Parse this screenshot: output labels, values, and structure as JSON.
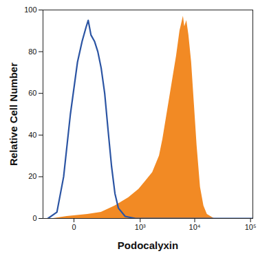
{
  "chart_data": {
    "type": "line",
    "x_label": "Podocalyxin",
    "y_label": "Relative Cell Number",
    "log": "x",
    "grid": false,
    "xlim": [
      -180,
      110000
    ],
    "ylim": [
      0,
      100
    ],
    "xticks": [
      0,
      {
        "value": 1000,
        "label": "10³"
      },
      {
        "value": 10000,
        "label": "10⁴"
      },
      {
        "value": 100000,
        "label": "10⁵"
      }
    ],
    "yticks": [
      0,
      20,
      40,
      60,
      80,
      100
    ],
    "series": [
      {
        "type": "area",
        "color": "#f28a24",
        "x": [
          -93,
          -23,
          53,
          145,
          308,
          593,
          941,
          1270,
          1705,
          2281,
          2634,
          3043,
          3512,
          4054,
          4677,
          5393,
          6218,
          6580,
          7160,
          7800,
          8740,
          9790,
          10960,
          12620,
          14540,
          16740,
          22210,
          110000
        ],
        "values": [
          0,
          1,
          2,
          3,
          6,
          10,
          14,
          18,
          22,
          30,
          38,
          48,
          58,
          68,
          78,
          90,
          97,
          92,
          95,
          88,
          75,
          55,
          35,
          15,
          6,
          2,
          0,
          0
        ]
      },
      {
        "type": "line",
        "color": "#2b54a3",
        "x": [
          -134,
          -71,
          -37,
          -11,
          11,
          28,
          46,
          56,
          71,
          93,
          117,
          145,
          178,
          216,
          259,
          308,
          365,
          506,
          809,
          110000
        ],
        "values": [
          0,
          3,
          20,
          50,
          75,
          85,
          92,
          95,
          88,
          85,
          80,
          72,
          60,
          42,
          25,
          12,
          5,
          1,
          0,
          0
        ]
      }
    ]
  }
}
